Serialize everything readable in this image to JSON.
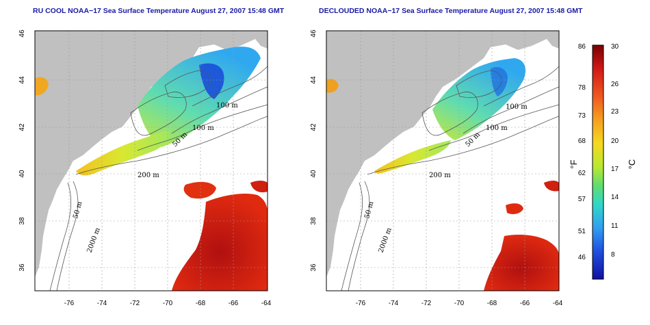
{
  "panels": [
    {
      "title": "RU COOL NOAA−17 Sea Surface Temperature August 27, 2007 15:48 GMT",
      "contour_labels": [
        "100 m",
        "100 m",
        "50 m",
        "200 m",
        "50 m",
        "2000 m"
      ]
    },
    {
      "title": "DECLOUDED NOAA−17 Sea Surface Temperature August 27, 2007 15:48 GMT",
      "contour_labels": [
        "100 m",
        "100 m",
        "50 m",
        "200 m",
        "50 m",
        "2000 m"
      ]
    }
  ],
  "axes": {
    "x_ticks": [
      "-76",
      "-74",
      "-72",
      "-70",
      "-68",
      "-66",
      "-64"
    ],
    "y_ticks": [
      "36",
      "38",
      "40",
      "42",
      "44",
      "46"
    ]
  },
  "colorbar": {
    "fahrenheit_ticks": [
      "86",
      "78",
      "73",
      "68",
      "62",
      "57",
      "51",
      "46"
    ],
    "celsius_ticks": [
      "30",
      "26",
      "23",
      "20",
      "17",
      "14",
      "11",
      "8"
    ],
    "fahrenheit_unit": "°F",
    "celsius_unit": "°C",
    "colors": [
      "#8b0000",
      "#d62020",
      "#f05020",
      "#f59a20",
      "#f5d020",
      "#c8e830",
      "#70e060",
      "#30d8c0",
      "#30a8f0",
      "#2060e0",
      "#1010a0"
    ]
  },
  "colors": {
    "land": "#c0c0c0",
    "ocean": "#ffffff",
    "title": "#1a1aa6"
  }
}
